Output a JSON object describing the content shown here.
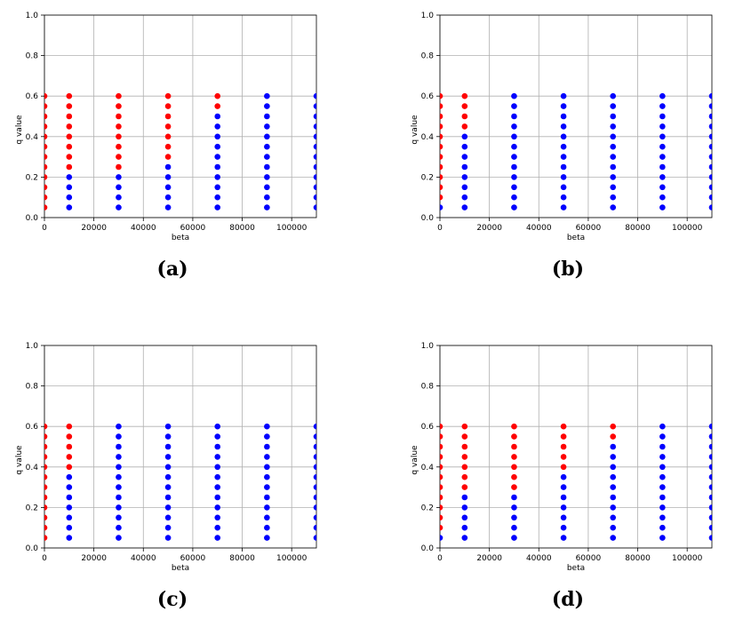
{
  "colors": {
    "stable": "#ff0000",
    "unstable": "#0000ff",
    "grid": "#b0b0b0",
    "axis": "#000000"
  },
  "chart_data": [
    {
      "type": "scatter",
      "caption": "(a)",
      "xlabel": "beta",
      "ylabel": "q value",
      "xlim": [
        0,
        110000
      ],
      "ylim": [
        0,
        1.0
      ],
      "xticks": [
        0,
        20000,
        40000,
        60000,
        80000,
        100000
      ],
      "xtick_labels": [
        "0",
        "20000",
        "40000",
        "60000",
        "80000",
        "100000"
      ],
      "yticks": [
        0,
        0.2,
        0.4,
        0.6,
        0.8,
        1.0
      ],
      "ytick_labels": [
        "0.0",
        "0.2",
        "0.4",
        "0.6",
        "0.8",
        "1.0"
      ],
      "grid": true,
      "beta_values": [
        0,
        10000,
        30000,
        50000,
        70000,
        90000,
        110000
      ],
      "q_values": [
        0.05,
        0.1,
        0.15,
        0.2,
        0.25,
        0.3,
        0.35,
        0.4,
        0.45,
        0.5,
        0.55,
        0.6
      ],
      "red_min_q": [
        0.05,
        0.25,
        0.25,
        0.3,
        0.55,
        null,
        null
      ]
    },
    {
      "type": "scatter",
      "caption": "(b)",
      "xlabel": "beta",
      "ylabel": "q value",
      "xlim": [
        0,
        110000
      ],
      "ylim": [
        0,
        1.0
      ],
      "xticks": [
        0,
        20000,
        40000,
        60000,
        80000,
        100000
      ],
      "xtick_labels": [
        "0",
        "20000",
        "40000",
        "60000",
        "80000",
        "100000"
      ],
      "yticks": [
        0,
        0.2,
        0.4,
        0.6,
        0.8,
        1.0
      ],
      "ytick_labels": [
        "0.0",
        "0.2",
        "0.4",
        "0.6",
        "0.8",
        "1.0"
      ],
      "grid": true,
      "beta_values": [
        0,
        10000,
        30000,
        50000,
        70000,
        90000,
        110000
      ],
      "q_values": [
        0.05,
        0.1,
        0.15,
        0.2,
        0.25,
        0.3,
        0.35,
        0.4,
        0.45,
        0.5,
        0.55,
        0.6
      ],
      "red_min_q": [
        0.1,
        0.45,
        null,
        null,
        null,
        null,
        null
      ]
    },
    {
      "type": "scatter",
      "caption": "(c)",
      "xlabel": "beta",
      "ylabel": "q value",
      "xlim": [
        0,
        110000
      ],
      "ylim": [
        0,
        1.0
      ],
      "xticks": [
        0,
        20000,
        40000,
        60000,
        80000,
        100000
      ],
      "xtick_labels": [
        "0",
        "20000",
        "40000",
        "60000",
        "80000",
        "100000"
      ],
      "yticks": [
        0,
        0.2,
        0.4,
        0.6,
        0.8,
        1.0
      ],
      "ytick_labels": [
        "0.0",
        "0.2",
        "0.4",
        "0.6",
        "0.8",
        "1.0"
      ],
      "grid": true,
      "beta_values": [
        0,
        10000,
        30000,
        50000,
        70000,
        90000,
        110000
      ],
      "q_values": [
        0.05,
        0.1,
        0.15,
        0.2,
        0.25,
        0.3,
        0.35,
        0.4,
        0.45,
        0.5,
        0.55,
        0.6
      ],
      "red_min_q": [
        0.05,
        0.4,
        null,
        null,
        null,
        null,
        null
      ]
    },
    {
      "type": "scatter",
      "caption": "(d)",
      "xlabel": "beta",
      "ylabel": "q value",
      "xlim": [
        0,
        110000
      ],
      "ylim": [
        0,
        1.0
      ],
      "xticks": [
        0,
        20000,
        40000,
        60000,
        80000,
        100000
      ],
      "xtick_labels": [
        "0",
        "20000",
        "40000",
        "60000",
        "80000",
        "100000"
      ],
      "yticks": [
        0,
        0.2,
        0.4,
        0.6,
        0.8,
        1.0
      ],
      "ytick_labels": [
        "0.0",
        "0.2",
        "0.4",
        "0.6",
        "0.8",
        "1.0"
      ],
      "grid": true,
      "beta_values": [
        0,
        10000,
        30000,
        50000,
        70000,
        90000,
        110000
      ],
      "q_values": [
        0.05,
        0.1,
        0.15,
        0.2,
        0.25,
        0.3,
        0.35,
        0.4,
        0.45,
        0.5,
        0.55,
        0.6
      ],
      "red_min_q": [
        0.1,
        0.3,
        0.3,
        0.4,
        0.55,
        null,
        null
      ]
    }
  ]
}
